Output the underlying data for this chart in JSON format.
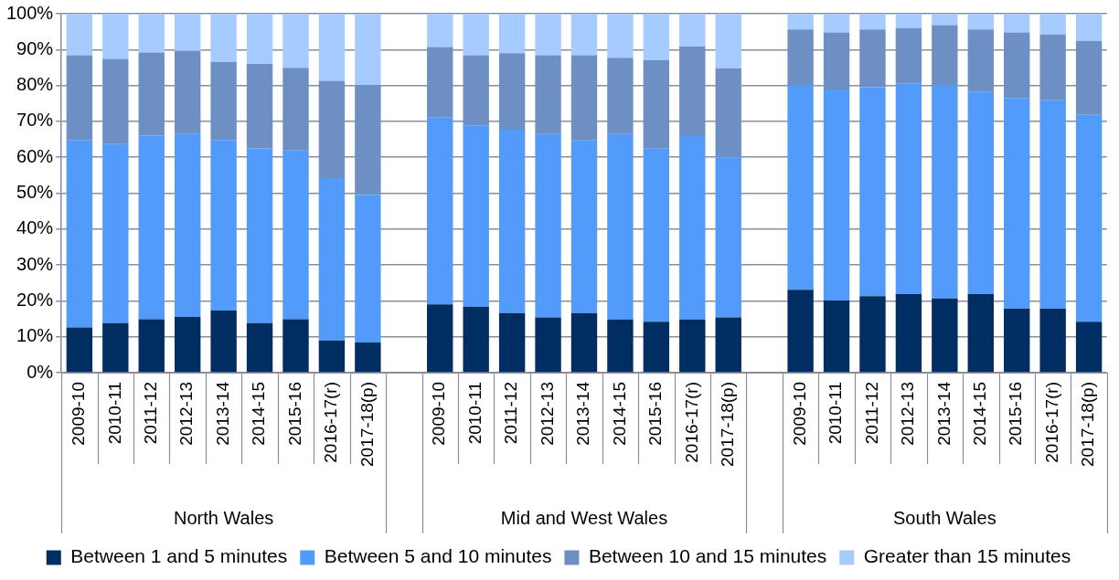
{
  "chart_data": {
    "type": "bar",
    "stacked": true,
    "categories": [
      "2009-10",
      "2010-11",
      "2011-12",
      "2012-13",
      "2013-14",
      "2014-15",
      "2015-16",
      "2016-17(r)",
      "2017-18(p)",
      null,
      "2009-10",
      "2010-11",
      "2011-12",
      "2012-13",
      "2013-14",
      "2014-15",
      "2015-16",
      "2016-17(r)",
      "2017-18(p)",
      null,
      "2009-10",
      "2010-11",
      "2011-12",
      "2012-13",
      "2013-14",
      "2014-15",
      "2015-16",
      "2016-17(r)",
      "2017-18(p)"
    ],
    "annotations": [
      "North Wales",
      "Mid and West Wales",
      "South Wales"
    ],
    "series": [
      {
        "name": "Between 1 and 5 minutes",
        "color": "#002d62",
        "values": [
          12.6,
          13.8,
          14.9,
          15.5,
          17.3,
          13.8,
          14.9,
          9.0,
          8.4,
          null,
          19.0,
          18.4,
          16.6,
          15.4,
          16.6,
          14.8,
          14.2,
          14.8,
          15.4,
          null,
          23.1,
          20.1,
          21.3,
          21.9,
          20.7,
          21.9,
          17.8,
          17.8,
          14.2
        ]
      },
      {
        "name": "Between 5 and 10 minutes",
        "color": "#529bfa",
        "values": [
          52.2,
          49.9,
          51.1,
          51.1,
          47.5,
          48.7,
          47.0,
          45.2,
          41.1,
          null,
          52.2,
          50.5,
          51.1,
          51.1,
          48.1,
          51.7,
          48.2,
          51.1,
          44.6,
          null,
          57.0,
          58.8,
          58.2,
          58.7,
          59.4,
          56.4,
          58.7,
          58.1,
          57.6
        ]
      },
      {
        "name": "Between 10 and 15 minutes",
        "color": "#6d8fc4",
        "values": [
          23.6,
          23.7,
          23.2,
          23.0,
          21.8,
          23.5,
          23.0,
          27.1,
          30.7,
          null,
          19.5,
          19.5,
          21.3,
          21.9,
          23.7,
          21.2,
          24.7,
          25.0,
          24.8,
          null,
          15.5,
          15.9,
          16.1,
          15.4,
          16.7,
          17.3,
          18.3,
          18.3,
          20.6
        ]
      },
      {
        "name": "Greater than 15 minutes",
        "color": "#a6cbff",
        "values": [
          11.6,
          12.6,
          10.8,
          10.4,
          13.4,
          14.0,
          15.1,
          18.7,
          19.8,
          null,
          9.3,
          11.6,
          11.0,
          11.6,
          11.6,
          12.3,
          12.9,
          9.1,
          15.2,
          null,
          4.4,
          5.2,
          4.4,
          4.0,
          3.2,
          4.4,
          5.2,
          5.8,
          7.6
        ]
      }
    ],
    "ylim": [
      0,
      100
    ],
    "yticks": [
      {
        "value": 0,
        "label": "0%"
      },
      {
        "value": 10,
        "label": "10%"
      },
      {
        "value": 20,
        "label": "20%"
      },
      {
        "value": 30,
        "label": "30%"
      },
      {
        "value": 40,
        "label": "40%"
      },
      {
        "value": 50,
        "label": "50%"
      },
      {
        "value": 60,
        "label": "60%"
      },
      {
        "value": 70,
        "label": "70%"
      },
      {
        "value": 80,
        "label": "80%"
      },
      {
        "value": 90,
        "label": "90%"
      },
      {
        "value": 100,
        "label": "100%"
      }
    ],
    "grid": "y",
    "legend": "bottom"
  }
}
